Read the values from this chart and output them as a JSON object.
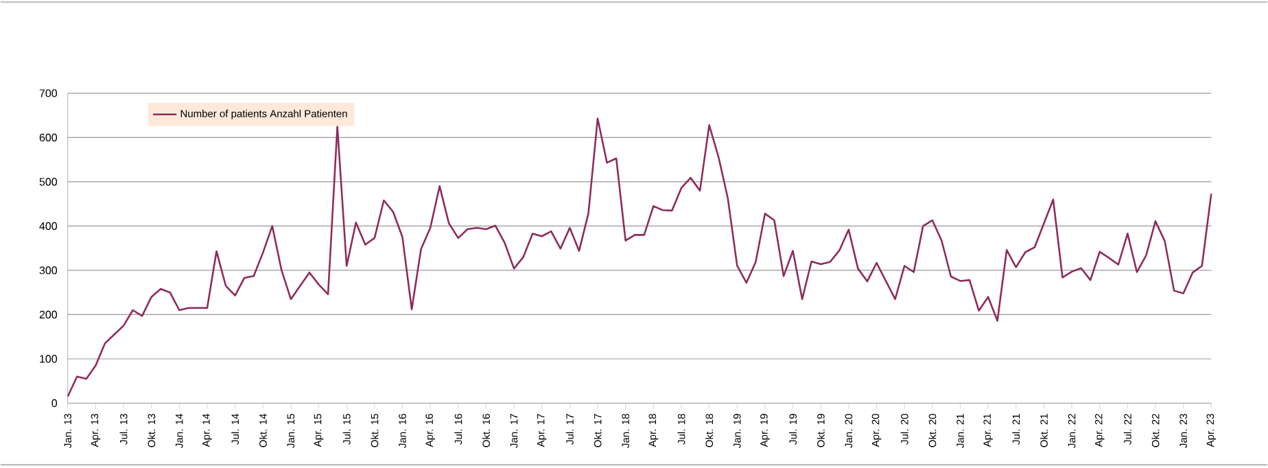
{
  "chart_data": {
    "type": "line",
    "categories": [
      "Jan. 13",
      null,
      null,
      "Apr. 13",
      null,
      null,
      "Jul. 13",
      null,
      null,
      "Okt. 13",
      null,
      null,
      "Jan. 14",
      null,
      null,
      "Apr. 14",
      null,
      null,
      "Jul. 14",
      null,
      null,
      "Okt. 14",
      null,
      null,
      "Jan. 15",
      null,
      null,
      "Apr. 15",
      null,
      null,
      "Jul. 15",
      null,
      null,
      "Okt. 15",
      null,
      null,
      "Jan. 16",
      null,
      null,
      "Apr. 16",
      null,
      null,
      "Jul. 16",
      null,
      null,
      "Okt. 16",
      null,
      null,
      "Jan. 17",
      null,
      null,
      "Apr. 17",
      null,
      null,
      "Jul. 17",
      null,
      null,
      "Okt. 17",
      null,
      null,
      "Jan. 18",
      null,
      null,
      "Apr. 18",
      null,
      null,
      "Jul. 18",
      null,
      null,
      "Okt. 18",
      null,
      null,
      "Jan. 19",
      null,
      null,
      "Apr. 19",
      null,
      null,
      "Jul. 19",
      null,
      null,
      "Okt. 19",
      null,
      null,
      "Jan. 20",
      null,
      null,
      "Apr. 20",
      null,
      null,
      "Jul. 20",
      null,
      null,
      "Okt. 20",
      null,
      null,
      "Jan. 21",
      null,
      null,
      "Apr. 21",
      null,
      null,
      "Jul. 21",
      null,
      null,
      "Okt. 21",
      null,
      null,
      "Jan. 22",
      null,
      null,
      "Apr. 22",
      null,
      null,
      "Jul. 22",
      null,
      null,
      "Okt. 22",
      null,
      null,
      "Jan. 23",
      null,
      null,
      "Apr. 23"
    ],
    "series": [
      {
        "name": "Number of patients Anzahl Patienten",
        "color": "#8e2c5c",
        "values": [
          15,
          60,
          55,
          85,
          135,
          155,
          175,
          210,
          197,
          240,
          258,
          250,
          210,
          215,
          215,
          215,
          343,
          265,
          243,
          283,
          287,
          340,
          400,
          300,
          235,
          265,
          295,
          268,
          246,
          625,
          310,
          408,
          358,
          373,
          458,
          432,
          375,
          212,
          348,
          396,
          490,
          406,
          373,
          393,
          396,
          393,
          401,
          362,
          304,
          330,
          383,
          377,
          388,
          349,
          396,
          344,
          428,
          643,
          543,
          553,
          367,
          380,
          380,
          445,
          436,
          435,
          486,
          509,
          480,
          628,
          556,
          463,
          311,
          272,
          319,
          428,
          413,
          287,
          344,
          235,
          320,
          314,
          319,
          345,
          392,
          304,
          275,
          317,
          276,
          235,
          310,
          296,
          400,
          413,
          367,
          286,
          276,
          278,
          209,
          240,
          186,
          346,
          307,
          341,
          352,
          406,
          460,
          284,
          297,
          305,
          278,
          342,
          328,
          313,
          383,
          296,
          334,
          411,
          366,
          254,
          248,
          295,
          310,
          473
        ]
      }
    ],
    "ylim": [
      0,
      700
    ],
    "yticks": [
      0,
      100,
      200,
      300,
      400,
      500,
      600,
      700
    ],
    "grid": "y",
    "legend": "top left",
    "marker": "none",
    "line_style": "solid"
  }
}
